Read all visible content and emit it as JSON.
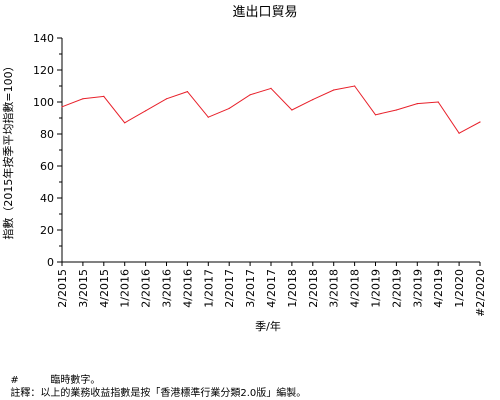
{
  "chart_data": {
    "type": "line",
    "title": "進出口貿易",
    "xlabel": "季/年",
    "ylabel": "指數（2015年按季平均指數=100）",
    "ylim": [
      0,
      140
    ],
    "yticks": [
      0,
      20,
      40,
      60,
      80,
      100,
      120,
      140
    ],
    "grid": false,
    "legend": "none",
    "line_color": "#e8202a",
    "categories": [
      "2/2015",
      "3/2015",
      "4/2015",
      "1/2016",
      "2/2016",
      "3/2016",
      "4/2016",
      "1/2017",
      "2/2017",
      "3/2017",
      "4/2017",
      "1/2018",
      "2/2018",
      "3/2018",
      "4/2018",
      "1/2019",
      "2/2019",
      "3/2019",
      "4/2019",
      "1/2020",
      "#2/2020"
    ],
    "series": [
      {
        "values": [
          97,
          102,
          103.5,
          87,
          94.5,
          102,
          106.5,
          90.5,
          96,
          104.5,
          108.5,
          95,
          101.5,
          107.5,
          110,
          92,
          95,
          99,
          100,
          80.5,
          87.5
        ]
      }
    ]
  },
  "notes": [
    {
      "mark": "#",
      "text": "臨時數字。"
    },
    {
      "mark": "註釋：",
      "text": "以上的業務收益指數是按「香港標準行業分類2.0版」編製。"
    }
  ]
}
